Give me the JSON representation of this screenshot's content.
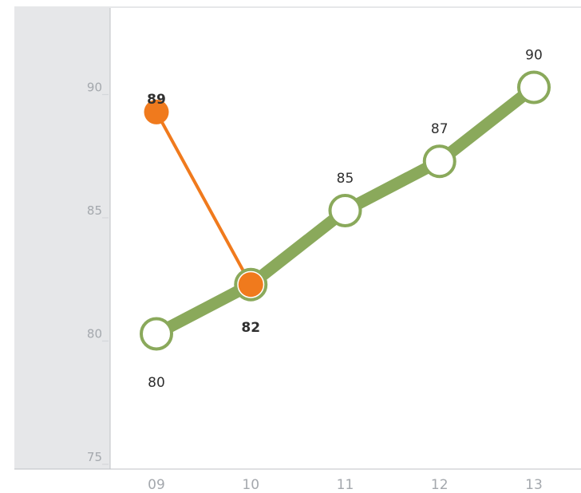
{
  "chart_data": {
    "type": "line",
    "title": "",
    "xlabel": "",
    "ylabel": "",
    "categories": [
      "09",
      "10",
      "11",
      "12",
      "13"
    ],
    "ylim": [
      75,
      92.5
    ],
    "yticks": [
      75,
      80,
      85,
      90
    ],
    "ytick_labels": [
      "75",
      "80",
      "85",
      "90"
    ],
    "series": [
      {
        "values": [
          80,
          82,
          85,
          87,
          90
        ],
        "labels": [
          "80",
          "82",
          "85",
          "87",
          "90"
        ],
        "color": "#8aa95b",
        "marker_fill": "#ffffff",
        "marker_stroke": "#8aa95b"
      },
      {
        "values": [
          89,
          82,
          null,
          null,
          null
        ],
        "labels": [
          "89",
          "82",
          "",
          "",
          ""
        ],
        "color": "#f07a1d",
        "marker_fill": "#f07a1d",
        "marker_stroke": "#f07a1d"
      }
    ],
    "grid": false,
    "legend": "none"
  },
  "colors": {
    "background": "#ffffff",
    "left_panel": "#e6e7e9",
    "plot_bg": "#ffffff",
    "axis": "#bfc2c5",
    "tick_text": "#a4a8ad",
    "label_text": "#2f2f2f"
  }
}
